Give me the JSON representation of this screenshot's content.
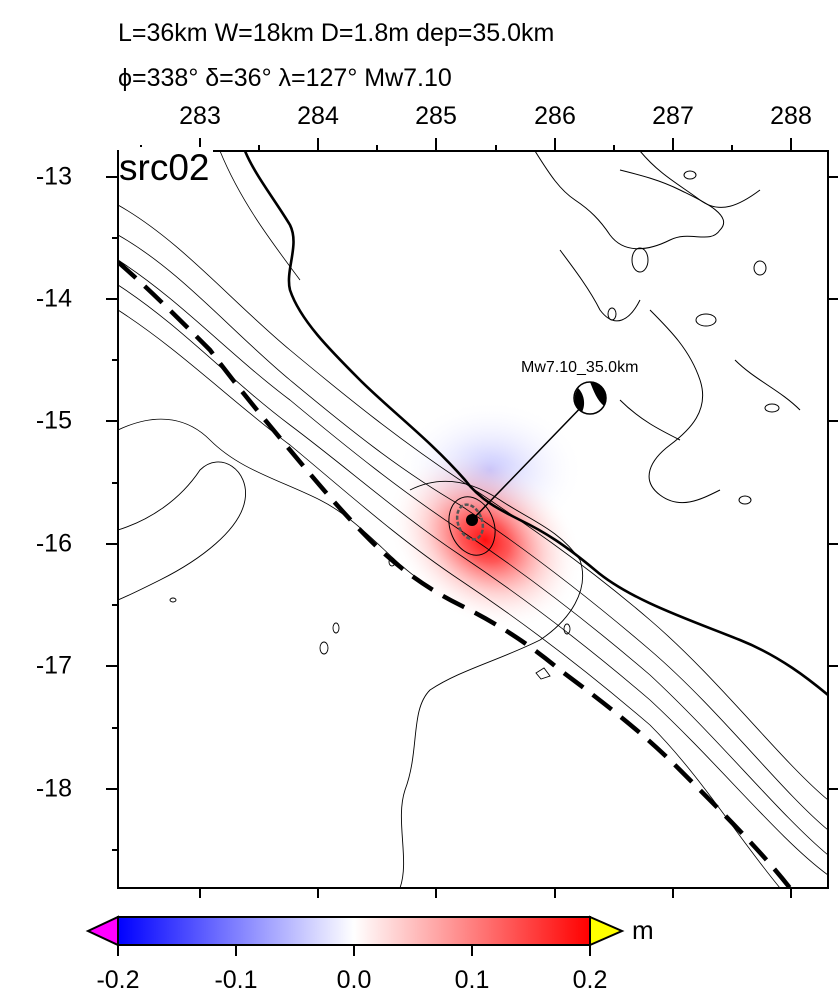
{
  "header": {
    "line1": "L=36km W=18km D=1.8m dep=35.0km",
    "line2": "ϕ=338° δ=36° λ=127° Mw7.10"
  },
  "map": {
    "panel_label": "src02",
    "x_ticks": [
      "283",
      "284",
      "285",
      "286",
      "287",
      "288"
    ],
    "y_ticks": [
      "-13",
      "-14",
      "-15",
      "-16",
      "-17",
      "-18"
    ],
    "mechanism_label": "Mw7.10_35.0km",
    "colors": {
      "uplift": "#ff2a2a",
      "subsidence": "#5555ff",
      "coastline": "#000000",
      "trench": "#000000"
    }
  },
  "colorbar": {
    "ticks": [
      "-0.2",
      "-0.1",
      "0.0",
      "0.1",
      "0.2"
    ],
    "unit": "m",
    "colors": {
      "min": "#0000ff",
      "mid": "#ffffff",
      "max": "#ff0000",
      "under": "#ff00ff",
      "over": "#ffff00"
    }
  }
}
